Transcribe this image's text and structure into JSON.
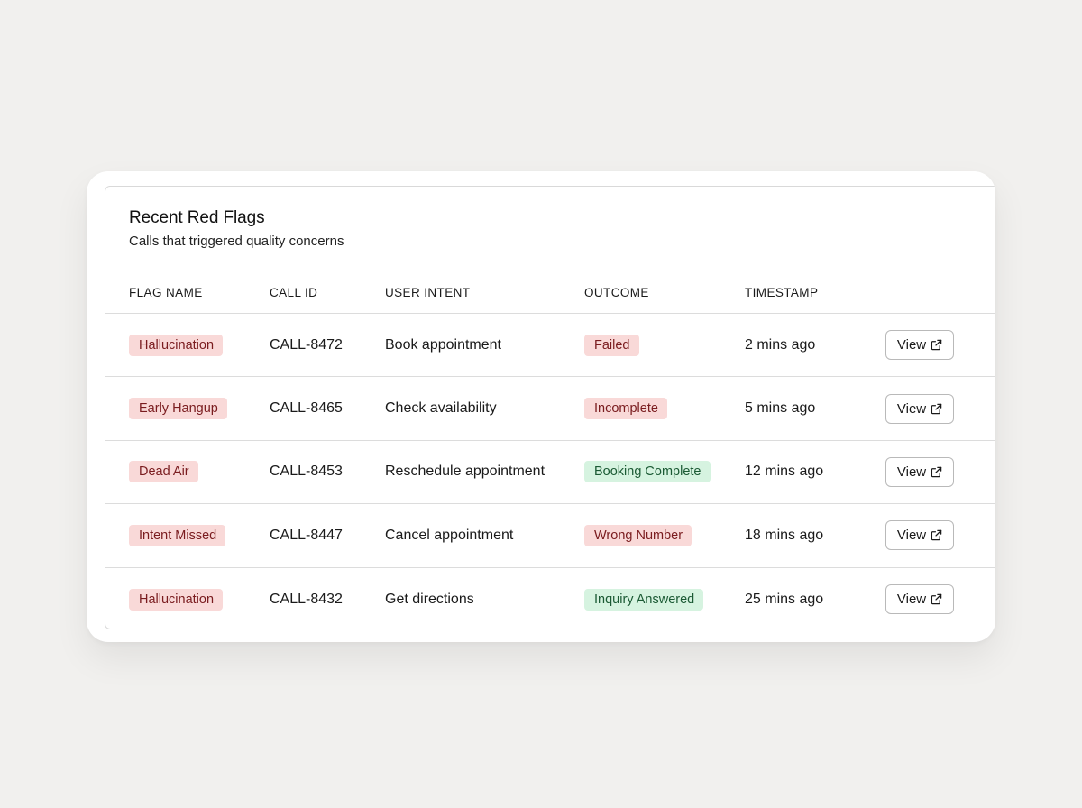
{
  "card": {
    "title": "Recent Red Flags",
    "subtitle": "Calls that triggered quality concerns"
  },
  "table": {
    "columns": [
      "FLAG NAME",
      "CALL ID",
      "USER INTENT",
      "OUTCOME",
      "TIMESTAMP",
      ""
    ],
    "rows": [
      {
        "flag": "Hallucination",
        "call_id": "CALL-8472",
        "intent": "Book appointment",
        "outcome": "Failed",
        "outcome_status": "negative",
        "timestamp": "2 mins ago",
        "action_label": "View"
      },
      {
        "flag": "Early Hangup",
        "call_id": "CALL-8465",
        "intent": "Check availability",
        "outcome": "Incomplete",
        "outcome_status": "negative",
        "timestamp": "5 mins ago",
        "action_label": "View"
      },
      {
        "flag": "Dead Air",
        "call_id": "CALL-8453",
        "intent": "Reschedule appointment",
        "outcome": "Booking Complete",
        "outcome_status": "positive",
        "timestamp": "12 mins ago",
        "action_label": "View"
      },
      {
        "flag": "Intent Missed",
        "call_id": "CALL-8447",
        "intent": "Cancel appointment",
        "outcome": "Wrong Number",
        "outcome_status": "negative",
        "timestamp": "18 mins ago",
        "action_label": "View"
      },
      {
        "flag": "Hallucination",
        "call_id": "CALL-8432",
        "intent": "Get directions",
        "outcome": "Inquiry Answered",
        "outcome_status": "positive",
        "timestamp": "25 mins ago",
        "action_label": "View"
      }
    ]
  },
  "icons": {
    "view_button": "external-link-icon"
  },
  "colors": {
    "negative_bg": "#f9d9d8",
    "negative_text": "#7a1c1f",
    "positive_bg": "#d6f3e0",
    "positive_text": "#1b5a34",
    "page_bg": "#f1f0ee"
  }
}
